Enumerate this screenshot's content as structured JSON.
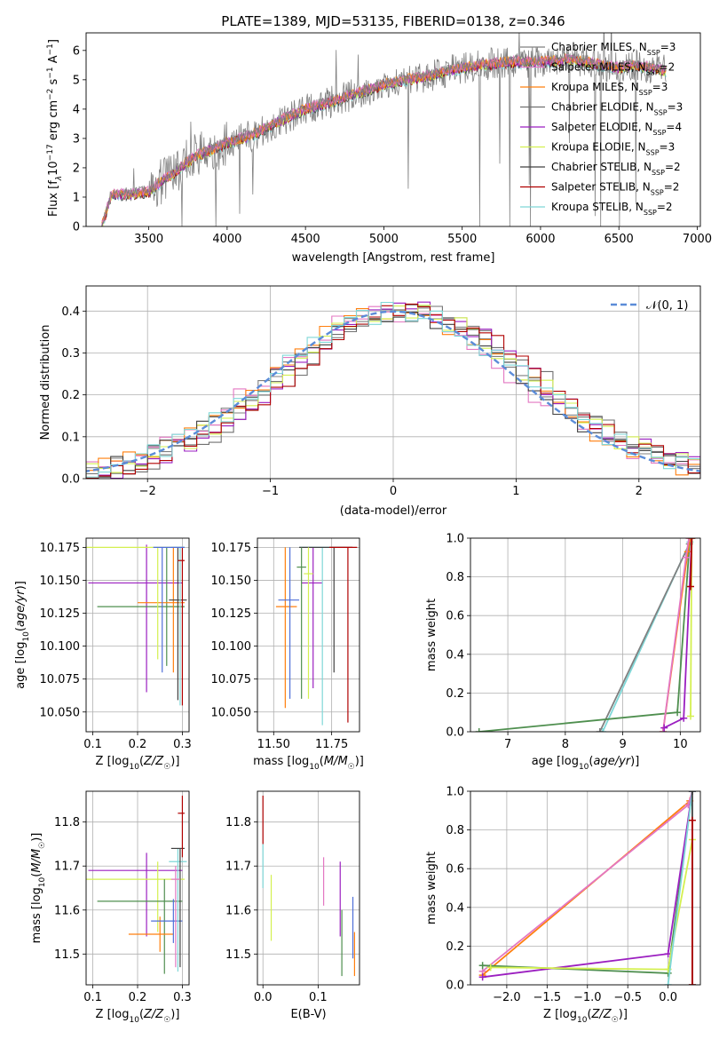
{
  "figure_title": "PLATE=1389, MJD=53135, FIBERID=0138, z=0.346",
  "colors": {
    "chabrier_miles": "#808080",
    "salpeter_miles": "#e377c2",
    "kroupa_miles": "#ff7f0e",
    "chabrier_elodie": "#707070",
    "salpeter_elodie": "#9b1fc0",
    "kroupa_elodie": "#d4f050",
    "chabrier_stelib": "#404040",
    "salpeter_stelib": "#b00000",
    "kroupa_stelib": "#7fd8d8",
    "normal_curve": "#5b8cd8",
    "extra_green": "#4f8f4f",
    "extra_blue": "#4f6fd8"
  },
  "chart_data": [
    {
      "id": "spectrum",
      "type": "line",
      "xlabel": "wavelength [Angstrom, rest frame]",
      "ylabel": "Flux [f_λ 10^-17 erg cm^-2 s^-1 A^-1]",
      "ylabel_parts": {
        "a": "Flux [f",
        "b": "λ",
        "c": "10",
        "d": "−17",
        "e": " erg cm",
        "f": "−2",
        "g": " s",
        "h": "−1",
        "i": " A",
        "j": "−1",
        "k": "]"
      },
      "xlim": [
        3100,
        7020
      ],
      "ylim": [
        0,
        6.6
      ],
      "xticks": [
        "3500",
        "4000",
        "4500",
        "5000",
        "5500",
        "6000",
        "6500",
        "7000"
      ],
      "xtick_values": [
        3500,
        4000,
        4500,
        5000,
        5500,
        6000,
        6500,
        7000
      ],
      "yticks": [
        "0",
        "1",
        "2",
        "3",
        "4",
        "5",
        "6"
      ],
      "ytick_values": [
        0,
        1,
        2,
        3,
        4,
        5,
        6
      ],
      "continuum": {
        "x": [
          3200,
          3260,
          3300,
          3400,
          3500,
          3600,
          3700,
          3800,
          3900,
          4000,
          4100,
          4200,
          4300,
          4400,
          4500,
          4600,
          4700,
          4800,
          4900,
          5000,
          5100,
          5200,
          5300,
          5400,
          5500,
          5600,
          5700,
          5800,
          5900,
          6000,
          6100,
          6200,
          6300,
          6400,
          6500,
          6600,
          6700,
          6800
        ],
        "y": [
          0.0,
          1.05,
          1.1,
          1.1,
          1.2,
          1.6,
          2.0,
          2.4,
          2.6,
          2.85,
          3.0,
          3.2,
          3.5,
          3.75,
          4.0,
          4.15,
          4.3,
          4.5,
          4.65,
          4.85,
          4.95,
          5.05,
          5.15,
          5.3,
          5.4,
          5.5,
          5.55,
          5.6,
          5.6,
          5.6,
          5.65,
          5.7,
          5.6,
          5.5,
          5.4,
          5.5,
          5.4,
          5.3
        ]
      },
      "legend": [
        {
          "name": "Chabrier MILES",
          "n": "3",
          "color_key": "chabrier_miles"
        },
        {
          "name": "Salpeter MILES",
          "n": "2",
          "color_key": "salpeter_miles"
        },
        {
          "name": "Kroupa MILES",
          "n": "3",
          "color_key": "kroupa_miles"
        },
        {
          "name": "Chabrier ELODIE",
          "n": "3",
          "color_key": "chabrier_elodie"
        },
        {
          "name": "Salpeter ELODIE",
          "n": "4",
          "color_key": "salpeter_elodie"
        },
        {
          "name": "Kroupa ELODIE",
          "n": "3",
          "color_key": "kroupa_elodie"
        },
        {
          "name": "Chabrier STELIB",
          "n": "2",
          "color_key": "chabrier_stelib"
        },
        {
          "name": "Salpeter STELIB",
          "n": "2",
          "color_key": "salpeter_stelib"
        },
        {
          "name": "Kroupa STELIB",
          "n": "2",
          "color_key": "kroupa_stelib"
        }
      ],
      "legend_suffix_sub": "SSP",
      "legend_n_prefix": "N",
      "legend_eq": "="
    },
    {
      "id": "residuals",
      "type": "histogram",
      "xlabel": "(data-model)/error",
      "ylabel": "Normed distribution",
      "xlim": [
        -2.5,
        2.5
      ],
      "ylim": [
        0,
        0.46
      ],
      "xticks": [
        "−2",
        "−1",
        "0",
        "1",
        "2"
      ],
      "xtick_values": [
        -2,
        -1,
        0,
        1,
        2
      ],
      "yticks": [
        "0.0",
        "0.1",
        "0.2",
        "0.3",
        "0.4"
      ],
      "ytick_values": [
        0,
        0.1,
        0.2,
        0.3,
        0.4
      ],
      "bin_width": 0.1,
      "legend_label": "𝒩(0, 1)",
      "series_color_keys": [
        "chabrier_miles",
        "salpeter_miles",
        "kroupa_miles",
        "chabrier_elodie",
        "salpeter_elodie",
        "kroupa_elodie",
        "chabrier_stelib",
        "salpeter_stelib",
        "kroupa_stelib"
      ]
    },
    {
      "id": "age_vs_Z",
      "type": "errorbar",
      "xlabel": "Z [log10(Z/Z☉)]",
      "ylabel": "age [log10(age/yr)]",
      "xlim": [
        0.085,
        0.315
      ],
      "ylim": [
        10.035,
        10.182
      ],
      "xticks": [
        "0.1",
        "0.2",
        "0.3"
      ],
      "xtick_values": [
        0.1,
        0.2,
        0.3
      ],
      "yticks": [
        "10.050",
        "10.075",
        "10.100",
        "10.125",
        "10.150",
        "10.175"
      ],
      "ytick_values": [
        10.05,
        10.075,
        10.1,
        10.125,
        10.15,
        10.175
      ],
      "points": [
        {
          "x": 0.22,
          "y": 10.148,
          "xerr": [
            0.13,
            0.08
          ],
          "yerr": [
            0.083,
            0.029
          ],
          "color_key": "salpeter_elodie"
        },
        {
          "x": 0.265,
          "y": 10.13,
          "xerr": [
            0.155,
            0.04
          ],
          "yerr": [
            0.045,
            0.045
          ],
          "color_key": "extra_green"
        },
        {
          "x": 0.28,
          "y": 10.133,
          "xerr": [
            0.08,
            0.025
          ],
          "yerr": [
            0.053,
            0.042
          ],
          "color_key": "kroupa_miles"
        },
        {
          "x": 0.245,
          "y": 10.175,
          "xerr": [
            0.16,
            0.06
          ],
          "yerr": [
            0.085,
            0.0
          ],
          "color_key": "kroupa_elodie"
        },
        {
          "x": 0.29,
          "y": 10.135,
          "xerr": [
            0.02,
            0.02
          ],
          "yerr": [
            0.076,
            0.04
          ],
          "color_key": "chabrier_stelib"
        },
        {
          "x": 0.295,
          "y": 10.175,
          "xerr": [
            0.02,
            0.01
          ],
          "yerr": [
            0.12,
            0.0
          ],
          "color_key": "kroupa_stelib"
        },
        {
          "x": 0.3,
          "y": 10.165,
          "xerr": [
            0.01,
            0.005
          ],
          "yerr": [
            0.11,
            0.01
          ],
          "color_key": "salpeter_stelib"
        },
        {
          "x": 0.255,
          "y": 10.175,
          "xerr": [
            0.02,
            0.05
          ],
          "yerr": [
            0.095,
            0.0
          ],
          "color_key": "extra_blue"
        }
      ]
    },
    {
      "id": "age_vs_mass",
      "type": "errorbar",
      "xlabel": "mass [log10(M/M☉)]",
      "ylabel": "",
      "xlim": [
        11.43,
        11.87
      ],
      "ylim": [
        10.035,
        10.182
      ],
      "xticks": [
        "11.50",
        "11.75"
      ],
      "xtick_values": [
        11.5,
        11.75
      ],
      "yticks": [
        "10.050",
        "10.075",
        "10.100",
        "10.125",
        "10.150",
        "10.175"
      ],
      "ytick_values": [
        10.05,
        10.075,
        10.1,
        10.125,
        10.15,
        10.175
      ],
      "points": [
        {
          "x": 11.55,
          "y": 10.13,
          "xerr": [
            0.04,
            0.05
          ],
          "yerr": [
            0.077,
            0.045
          ],
          "color_key": "kroupa_miles"
        },
        {
          "x": 11.57,
          "y": 10.135,
          "xerr": [
            0.05,
            0.04
          ],
          "yerr": [
            0.075,
            0.04
          ],
          "color_key": "extra_blue"
        },
        {
          "x": 11.67,
          "y": 10.148,
          "xerr": [
            0.05,
            0.04
          ],
          "yerr": [
            0.08,
            0.027
          ],
          "color_key": "salpeter_elodie"
        },
        {
          "x": 11.71,
          "y": 10.175,
          "xerr": [
            0.1,
            0.1
          ],
          "yerr": [
            0.135,
            0.0
          ],
          "color_key": "kroupa_stelib"
        },
        {
          "x": 11.76,
          "y": 10.175,
          "xerr": [
            0.15,
            0.08
          ],
          "yerr": [
            0.095,
            0.0
          ],
          "color_key": "chabrier_stelib"
        },
        {
          "x": 11.82,
          "y": 10.175,
          "xerr": [
            0.08,
            0.04
          ],
          "yerr": [
            0.133,
            0.0
          ],
          "color_key": "salpeter_stelib"
        },
        {
          "x": 11.62,
          "y": 10.16,
          "xerr": [
            0.02,
            0.02
          ],
          "yerr": [
            0.1,
            0.015
          ],
          "color_key": "extra_green"
        },
        {
          "x": 11.65,
          "y": 10.155,
          "xerr": [
            0.02,
            0.02
          ],
          "yerr": [
            0.095,
            0.02
          ],
          "color_key": "kroupa_elodie"
        }
      ]
    },
    {
      "id": "weight_vs_age",
      "type": "cumulative-line",
      "xlabel": "age [log10(age/yr)]",
      "ylabel": "mass weight",
      "xlim": [
        6.35,
        10.35
      ],
      "ylim": [
        0,
        1.0
      ],
      "xticks": [
        "7",
        "8",
        "9",
        "10"
      ],
      "xtick_values": [
        7,
        8,
        9,
        10
      ],
      "yticks": [
        "0.0",
        "0.2",
        "0.4",
        "0.6",
        "0.8",
        "1.0"
      ],
      "ytick_values": [
        0,
        0.2,
        0.4,
        0.6,
        0.8,
        1.0
      ],
      "series": [
        {
          "x": [
            8.65,
            10.17,
            10.18
          ],
          "y": [
            0.0,
            0.98,
            1.0
          ],
          "color_key": "kroupa_stelib"
        },
        {
          "x": [
            8.6,
            10.16,
            10.17
          ],
          "y": [
            0.0,
            0.97,
            1.0
          ],
          "color_key": "chabrier_miles"
        },
        {
          "x": [
            6.5,
            9.95,
            10.17
          ],
          "y": [
            0.0,
            0.1,
            1.0
          ],
          "color_key": "extra_green"
        },
        {
          "x": [
            9.7,
            10.13,
            10.17
          ],
          "y": [
            0.0,
            0.93,
            1.0
          ],
          "color_key": "kroupa_miles"
        },
        {
          "x": [
            9.7,
            10.1,
            10.15
          ],
          "y": [
            0.0,
            0.9,
            1.0
          ],
          "color_key": "salpeter_miles"
        },
        {
          "x": [
            9.72,
            10.06,
            10.2
          ],
          "y": [
            0.02,
            0.07,
            1.0
          ],
          "color_key": "salpeter_elodie"
        },
        {
          "x": [
            10.18,
            10.2
          ],
          "y": [
            0.08,
            1.0
          ],
          "color_key": "kroupa_elodie"
        },
        {
          "x": [
            10.18,
            10.2
          ],
          "y": [
            0.75,
            1.0
          ],
          "color_key": "salpeter_stelib"
        }
      ]
    },
    {
      "id": "mass_vs_Z",
      "type": "errorbar",
      "xlabel": "Z [log10(Z/Z☉)]",
      "ylabel": "mass [log10(M/M☉)]",
      "xlim": [
        0.085,
        0.315
      ],
      "ylim": [
        11.43,
        11.87
      ],
      "xticks": [
        "0.1",
        "0.2",
        "0.3"
      ],
      "xtick_values": [
        0.1,
        0.2,
        0.3
      ],
      "yticks": [
        "11.5",
        "11.6",
        "11.7",
        "11.8"
      ],
      "ytick_values": [
        11.5,
        11.6,
        11.7,
        11.8
      ],
      "points": [
        {
          "x": 0.22,
          "y": 11.69,
          "xerr": [
            0.13,
            0.08
          ],
          "yerr": [
            0.15,
            0.04
          ],
          "color_key": "salpeter_elodie"
        },
        {
          "x": 0.245,
          "y": 11.67,
          "xerr": [
            0.16,
            0.06
          ],
          "yerr": [
            0.12,
            0.04
          ],
          "color_key": "kroupa_elodie"
        },
        {
          "x": 0.26,
          "y": 11.62,
          "xerr": [
            0.15,
            0.04
          ],
          "yerr": [
            0.165,
            0.05
          ],
          "color_key": "extra_green"
        },
        {
          "x": 0.25,
          "y": 11.545,
          "xerr": [
            0.07,
            0.03
          ],
          "yerr": [
            0.04,
            0.04
          ],
          "color_key": "kroupa_miles"
        },
        {
          "x": 0.28,
          "y": 11.575,
          "xerr": [
            0.05,
            0.02
          ],
          "yerr": [
            0.05,
            0.05
          ],
          "color_key": "extra_blue"
        },
        {
          "x": 0.29,
          "y": 11.71,
          "xerr": [
            0.02,
            0.02
          ],
          "yerr": [
            0.25,
            0.03
          ],
          "color_key": "kroupa_stelib"
        },
        {
          "x": 0.295,
          "y": 11.74,
          "xerr": [
            0.02,
            0.01
          ],
          "yerr": [
            0.27,
            0.0
          ],
          "color_key": "chabrier_stelib"
        },
        {
          "x": 0.3,
          "y": 11.82,
          "xerr": [
            0.01,
            0.005
          ],
          "yerr": [
            0.1,
            0.04
          ],
          "color_key": "salpeter_stelib"
        },
        {
          "x": 0.285,
          "y": 11.67,
          "xerr": [
            0.01,
            0.01
          ],
          "yerr": [
            0.2,
            0.03
          ],
          "color_key": "salpeter_miles"
        }
      ]
    },
    {
      "id": "mass_vs_EBV",
      "type": "errorbar",
      "xlabel": "E(B-V)",
      "ylabel": "",
      "xlim": [
        -0.01,
        0.175
      ],
      "ylim": [
        11.43,
        11.87
      ],
      "xticks": [
        "0.0",
        "0.1"
      ],
      "xtick_values": [
        0.0,
        0.1
      ],
      "yticks": [
        "11.5",
        "11.6",
        "11.7",
        "11.8"
      ],
      "ytick_values": [
        11.5,
        11.6,
        11.7,
        11.8
      ],
      "points": [
        {
          "x": 0.0,
          "y": 11.8,
          "xerr": [
            0,
            0
          ],
          "yerr": [
            0.05,
            0.06
          ],
          "color_key": "salpeter_stelib"
        },
        {
          "x": 0.0,
          "y": 11.7,
          "xerr": [
            0,
            0
          ],
          "yerr": [
            0.05,
            0.05
          ],
          "color_key": "kroupa_stelib"
        },
        {
          "x": 0.015,
          "y": 11.61,
          "xerr": [
            0,
            0
          ],
          "yerr": [
            0.08,
            0.07
          ],
          "color_key": "kroupa_elodie"
        },
        {
          "x": 0.11,
          "y": 11.67,
          "xerr": [
            0,
            0
          ],
          "yerr": [
            0.06,
            0.05
          ],
          "color_key": "salpeter_miles"
        },
        {
          "x": 0.14,
          "y": 11.6,
          "xerr": [
            0,
            0
          ],
          "yerr": [
            0.06,
            0.11
          ],
          "color_key": "salpeter_elodie"
        },
        {
          "x": 0.143,
          "y": 11.52,
          "xerr": [
            0,
            0
          ],
          "yerr": [
            0.07,
            0.08
          ],
          "color_key": "extra_green"
        },
        {
          "x": 0.163,
          "y": 11.55,
          "xerr": [
            0,
            0
          ],
          "yerr": [
            0.06,
            0.08
          ],
          "color_key": "extra_blue"
        },
        {
          "x": 0.166,
          "y": 11.5,
          "xerr": [
            0,
            0
          ],
          "yerr": [
            0.05,
            0.05
          ],
          "color_key": "kroupa_miles"
        }
      ]
    },
    {
      "id": "weight_vs_Z",
      "type": "cumulative-line",
      "xlabel": "Z [log10(Z/Z☉)]",
      "ylabel": "mass weight",
      "xlim": [
        -2.45,
        0.4
      ],
      "ylim": [
        0,
        1.0
      ],
      "xticks": [
        "−2.0",
        "−1.5",
        "−1.0",
        "−0.5",
        "0.0"
      ],
      "xtick_values": [
        -2.0,
        -1.5,
        -1.0,
        -0.5,
        0.0
      ],
      "yticks": [
        "0.0",
        "0.2",
        "0.4",
        "0.6",
        "0.8",
        "1.0"
      ],
      "ytick_values": [
        0,
        0.2,
        0.4,
        0.6,
        0.8,
        1.0
      ],
      "series": [
        {
          "x": [
            -2.3,
            0.27,
            0.3
          ],
          "y": [
            0.05,
            0.95,
            1.0
          ],
          "color_key": "kroupa_miles"
        },
        {
          "x": [
            -2.3,
            0.25,
            0.3
          ],
          "y": [
            0.07,
            0.93,
            1.0
          ],
          "color_key": "salpeter_miles"
        },
        {
          "x": [
            -2.3,
            0.0,
            0.3
          ],
          "y": [
            0.1,
            0.06,
            1.0
          ],
          "color_key": "extra_green"
        },
        {
          "x": [
            -2.3,
            0.0,
            0.3
          ],
          "y": [
            0.04,
            0.16,
            1.0
          ],
          "color_key": "salpeter_elodie"
        },
        {
          "x": [
            -2.2,
            0.0,
            0.3
          ],
          "y": [
            0.09,
            0.08,
            0.75
          ],
          "color_key": "kroupa_elodie"
        },
        {
          "x": [
            0.0,
            0.3
          ],
          "y": [
            0.0,
            1.0
          ],
          "color_key": "kroupa_stelib"
        },
        {
          "x": [
            0.3,
            0.3
          ],
          "y": [
            0.0,
            1.0
          ],
          "color_key": "chabrier_stelib"
        },
        {
          "x": [
            0.3,
            0.3
          ],
          "y": [
            0.0,
            0.85
          ],
          "color_key": "salpeter_stelib"
        }
      ]
    }
  ]
}
